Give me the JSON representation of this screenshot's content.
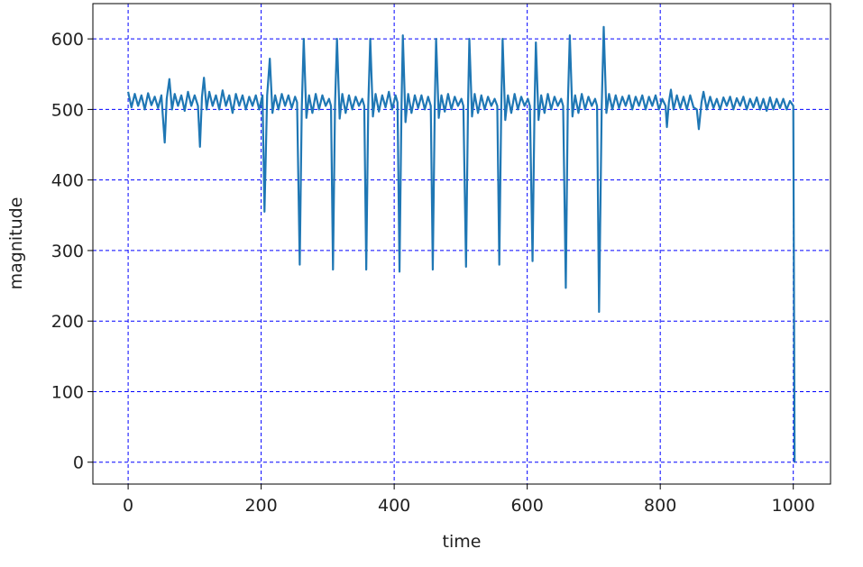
{
  "chart_data": {
    "type": "line",
    "x_label": "time",
    "y_label": "magnitude",
    "xlim": [
      -53,
      1056
    ],
    "ylim": [
      -31,
      650
    ],
    "xticks": [
      0,
      200,
      400,
      600,
      800,
      1000
    ],
    "yticks": [
      0,
      100,
      200,
      300,
      400,
      500,
      600
    ],
    "grid": true,
    "grid_color": "#0000ff",
    "series": [
      {
        "color": "#1f77b4",
        "x": [
          0,
          5,
          10,
          15,
          20,
          25,
          30,
          35,
          40,
          45,
          50,
          55,
          58,
          62,
          66,
          70,
          75,
          80,
          85,
          90,
          95,
          100,
          105,
          108,
          111,
          114,
          118,
          122,
          127,
          132,
          137,
          142,
          147,
          152,
          157,
          162,
          167,
          172,
          177,
          182,
          187,
          192,
          197,
          202,
          205,
          209,
          213,
          217,
          221,
          226,
          231,
          236,
          241,
          246,
          251,
          254,
          258,
          261,
          264,
          268,
          272,
          277,
          282,
          287,
          292,
          297,
          302,
          305,
          308,
          311,
          314,
          318,
          322,
          327,
          332,
          337,
          342,
          347,
          352,
          355,
          358,
          361,
          364,
          368,
          372,
          377,
          382,
          387,
          392,
          397,
          402,
          405,
          408,
          411,
          413,
          417,
          421,
          426,
          431,
          436,
          441,
          446,
          451,
          455,
          458,
          461,
          463,
          467,
          471,
          476,
          481,
          486,
          491,
          496,
          501,
          504,
          508,
          511,
          513,
          517,
          521,
          526,
          531,
          536,
          541,
          546,
          551,
          555,
          558,
          561,
          563,
          567,
          571,
          576,
          581,
          586,
          591,
          596,
          601,
          604,
          608,
          611,
          613,
          617,
          621,
          626,
          631,
          636,
          641,
          646,
          651,
          654,
          658,
          661,
          664,
          668,
          672,
          677,
          682,
          687,
          692,
          697,
          702,
          705,
          708,
          712,
          715,
          719,
          723,
          728,
          733,
          738,
          743,
          748,
          753,
          758,
          763,
          768,
          773,
          778,
          783,
          788,
          793,
          798,
          803,
          808,
          810,
          813,
          816,
          820,
          825,
          830,
          835,
          840,
          845,
          850,
          855,
          858,
          862,
          865,
          870,
          875,
          880,
          885,
          890,
          895,
          900,
          905,
          910,
          915,
          920,
          925,
          930,
          935,
          940,
          945,
          950,
          955,
          960,
          965,
          970,
          975,
          980,
          985,
          990,
          995,
          1000,
          1002
        ],
        "values": [
          525,
          503,
          522,
          505,
          520,
          500,
          523,
          506,
          518,
          502,
          520,
          453,
          515,
          543,
          500,
          522,
          505,
          520,
          498,
          525,
          505,
          520,
          505,
          447,
          518,
          545,
          500,
          525,
          505,
          520,
          500,
          527,
          505,
          520,
          495,
          522,
          505,
          520,
          500,
          518,
          505,
          520,
          500,
          520,
          355,
          520,
          572,
          495,
          520,
          500,
          522,
          505,
          520,
          502,
          518,
          510,
          280,
          500,
          600,
          488,
          520,
          495,
          522,
          500,
          520,
          505,
          515,
          505,
          273,
          505,
          600,
          487,
          522,
          495,
          520,
          500,
          518,
          505,
          515,
          505,
          273,
          505,
          600,
          490,
          522,
          497,
          520,
          503,
          525,
          500,
          520,
          510,
          270,
          505,
          605,
          482,
          522,
          495,
          520,
          502,
          520,
          500,
          518,
          505,
          273,
          505,
          600,
          488,
          520,
          497,
          522,
          500,
          518,
          505,
          515,
          505,
          277,
          505,
          600,
          490,
          522,
          495,
          520,
          500,
          518,
          505,
          515,
          505,
          280,
          505,
          600,
          485,
          520,
          495,
          522,
          500,
          518,
          505,
          515,
          505,
          285,
          505,
          595,
          485,
          520,
          495,
          522,
          500,
          518,
          505,
          515,
          505,
          247,
          505,
          605,
          490,
          520,
          495,
          522,
          500,
          518,
          505,
          515,
          505,
          213,
          505,
          617,
          495,
          522,
          500,
          520,
          502,
          518,
          505,
          520,
          500,
          518,
          505,
          520,
          500,
          518,
          505,
          520,
          500,
          515,
          505,
          475,
          510,
          528,
          500,
          520,
          502,
          518,
          500,
          520,
          503,
          500,
          472,
          510,
          525,
          500,
          518,
          502,
          515,
          500,
          517,
          505,
          518,
          500,
          516,
          505,
          518,
          500,
          515,
          503,
          517,
          500,
          515,
          498,
          517,
          500,
          515,
          502,
          515,
          500,
          512,
          505,
          0
        ]
      }
    ]
  }
}
